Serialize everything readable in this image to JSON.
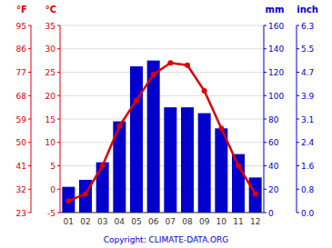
{
  "chart_data": {
    "type": "bar",
    "categories": [
      "01",
      "02",
      "03",
      "04",
      "05",
      "06",
      "07",
      "08",
      "09",
      "10",
      "11",
      "12"
    ],
    "series": [
      {
        "type": "bar",
        "axis": "y2",
        "color": "#0000cc",
        "values": [
          22,
          28,
          43,
          78,
          125,
          130,
          90,
          90,
          85,
          72,
          50,
          30
        ]
      },
      {
        "type": "line",
        "color": "#dd0000",
        "marker": "circle",
        "values": [
          -2.5,
          -1,
          5,
          13.5,
          19,
          24.5,
          27,
          26.5,
          21,
          13,
          5,
          -1
        ]
      }
    ],
    "ylabel": "°C",
    "ylim": [
      -5,
      35
    ],
    "yticks": [
      -5,
      0,
      5,
      10,
      15,
      20,
      25,
      30,
      35
    ],
    "y3label": "°F",
    "y3ticks": [
      {
        "value": -5,
        "label": "23"
      },
      {
        "value": 0,
        "label": "32"
      },
      {
        "value": 5,
        "label": "41"
      },
      {
        "value": 10,
        "label": "50"
      },
      {
        "value": 15,
        "label": "59"
      },
      {
        "value": 20,
        "label": "68"
      },
      {
        "value": 25,
        "label": "77"
      },
      {
        "value": 30,
        "label": "86"
      },
      {
        "value": 35,
        "label": "95"
      }
    ],
    "y2label": "mm",
    "y2lim": [
      0,
      160
    ],
    "y2ticks": [
      0,
      20,
      40,
      60,
      80,
      100,
      120,
      140,
      160
    ],
    "y4label": "inch",
    "y4ticks": [
      {
        "value": 0,
        "label": "0.0"
      },
      {
        "value": 20,
        "label": "0.8"
      },
      {
        "value": 40,
        "label": "1.6"
      },
      {
        "value": 60,
        "label": "2.4"
      },
      {
        "value": 80,
        "label": "3.1"
      },
      {
        "value": 100,
        "label": "3.9"
      },
      {
        "value": 120,
        "label": "4.7"
      },
      {
        "value": 140,
        "label": "5.5"
      },
      {
        "value": 160,
        "label": "6.3"
      }
    ],
    "grid": true,
    "annotations": [
      "Copyright: CLIMATE-DATA.ORG"
    ]
  }
}
